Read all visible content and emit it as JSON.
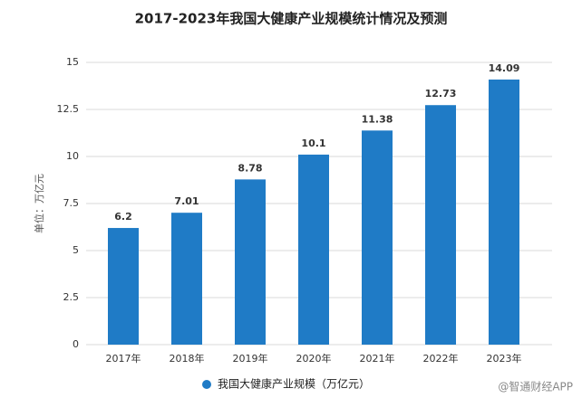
{
  "chart_data": {
    "type": "bar",
    "title": "2017-2023年我国大健康产业规模统计情况及预测",
    "y_label": "单位：万亿元",
    "categories": [
      "2017年",
      "2018年",
      "2019年",
      "2020年",
      "2021年",
      "2022年",
      "2023年"
    ],
    "series": [
      {
        "name": "我国大健康产业规模（万亿元）",
        "color": "#1f7bc6",
        "values": [
          6.2,
          7.01,
          8.78,
          10.1,
          11.38,
          12.73,
          14.09
        ]
      }
    ],
    "ylim": [
      0,
      15
    ],
    "yticks": [
      0,
      2.5,
      5,
      7.5,
      10,
      12.5,
      15
    ],
    "grid": true,
    "legend": "bottom",
    "watermark": "@智通财经APP"
  }
}
